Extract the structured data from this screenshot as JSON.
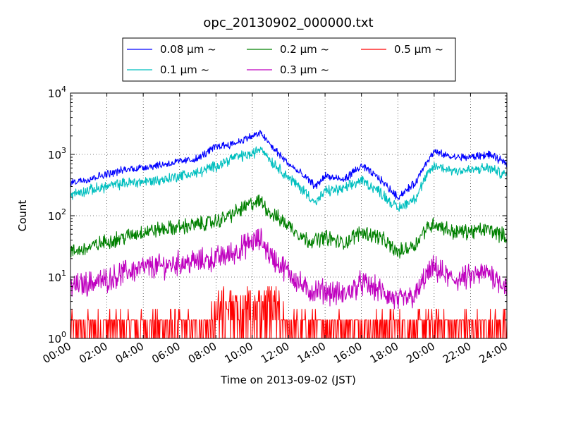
{
  "chart_data": {
    "type": "line",
    "title": "opc_20130902_000000.txt",
    "xlabel": "Time on 2013-09-02 (JST)",
    "ylabel": "Count",
    "y_scale": "log",
    "ylim": [
      1,
      10000
    ],
    "xlim": [
      "00:00",
      "24:00"
    ],
    "x_tick_labels": [
      "00:00",
      "02:00",
      "04:00",
      "06:00",
      "08:00",
      "10:00",
      "12:00",
      "14:00",
      "16:00",
      "18:00",
      "20:00",
      "22:00",
      "24:00"
    ],
    "y_tick_labels": [
      {
        "base": "10",
        "exp": "0"
      },
      {
        "base": "10",
        "exp": "1"
      },
      {
        "base": "10",
        "exp": "2"
      },
      {
        "base": "10",
        "exp": "3"
      },
      {
        "base": "10",
        "exp": "4"
      }
    ],
    "grid": true,
    "legend_position": "top",
    "x_hours": [
      0,
      1,
      2,
      3,
      4,
      5,
      6,
      7,
      8,
      9,
      10,
      10.5,
      11,
      12,
      13,
      13.5,
      14,
      15,
      16,
      17,
      18,
      19,
      19.5,
      20,
      21,
      22,
      23,
      24
    ],
    "series": [
      {
        "name": "0.08 μm ~",
        "color": "#0000ff",
        "values": [
          350,
          400,
          480,
          560,
          620,
          680,
          760,
          850,
          1350,
          1500,
          2000,
          2200,
          1400,
          700,
          400,
          300,
          450,
          380,
          650,
          400,
          200,
          350,
          700,
          1100,
          900,
          900,
          1000,
          700
        ]
      },
      {
        "name": "0.1 μm ~",
        "color": "#00bfbf",
        "values": [
          220,
          260,
          300,
          340,
          360,
          380,
          450,
          500,
          650,
          900,
          1000,
          1300,
          800,
          420,
          230,
          160,
          250,
          270,
          380,
          250,
          130,
          200,
          400,
          650,
          550,
          550,
          600,
          450
        ]
      },
      {
        "name": "0.2 μm ~",
        "color": "#008000",
        "values": [
          25,
          30,
          38,
          45,
          55,
          60,
          65,
          72,
          80,
          110,
          160,
          170,
          110,
          70,
          40,
          40,
          45,
          35,
          55,
          45,
          25,
          35,
          60,
          75,
          55,
          55,
          60,
          45
        ]
      },
      {
        "name": "0.3 μm ~",
        "color": "#bf00bf",
        "values": [
          7,
          8,
          9,
          12,
          14,
          15,
          17,
          18,
          20,
          25,
          38,
          40,
          22,
          12,
          6,
          6,
          6,
          5,
          8,
          6,
          4,
          5,
          10,
          14,
          9,
          10,
          12,
          7
        ]
      },
      {
        "name": "0.5 μm ~",
        "color": "#ff0000",
        "values": [
          1.5,
          1.6,
          1.7,
          1.8,
          1.9,
          2.0,
          2.0,
          2.2,
          2.5,
          3.0,
          3.5,
          3.8,
          3.0,
          2.0,
          1.6,
          1.5,
          1.6,
          1.5,
          1.7,
          1.6,
          1.4,
          1.5,
          1.8,
          2.0,
          1.8,
          1.8,
          1.9,
          1.6
        ]
      }
    ]
  }
}
